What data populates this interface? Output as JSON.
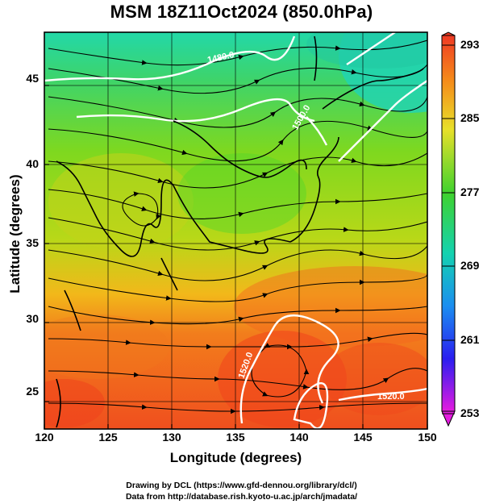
{
  "title": "MSM 18Z11Oct2024 (850.0hPa)",
  "axes": {
    "x_label": "Longitude (degrees)",
    "y_label": "Latitude  (degrees)",
    "x_ticks": [
      "120",
      "125",
      "130",
      "135",
      "140",
      "145",
      "150"
    ],
    "y_ticks": [
      "45",
      "40",
      "35",
      "30",
      "25"
    ]
  },
  "colorbar": {
    "ticks": [
      "293",
      "285",
      "277",
      "269",
      "261",
      "253"
    ]
  },
  "contour_labels": [
    "1480.0",
    "1500.0",
    "1520.0",
    "1520.0"
  ],
  "credits": {
    "line1": "Drawing by DCL (https://www.gfd-dennou.org/library/dcl/)",
    "line2": "Data from http://database.rish.kyoto-u.ac.jp/arch/jmadata/"
  },
  "colors": {
    "warm": "#f05a1e",
    "mid": "#46d21e",
    "cool": "#19d7a5",
    "coast": "#000000",
    "contour": "#ffffff"
  }
}
